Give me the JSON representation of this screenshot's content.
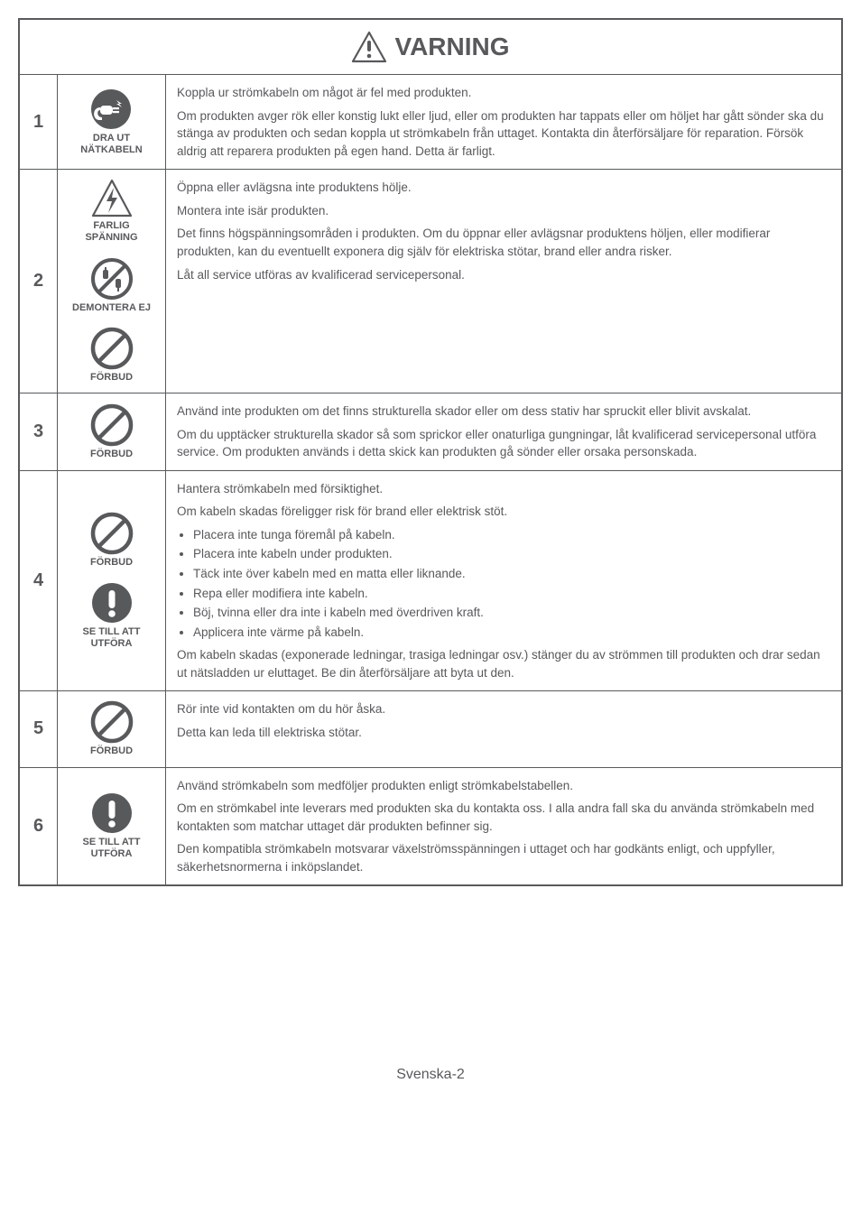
{
  "header": {
    "title": "VARNING"
  },
  "footer": "Svenska-2",
  "rows": [
    {
      "num": "1",
      "icons": [
        {
          "type": "unplug",
          "label": "DRA UT\nNÄTKABELN"
        }
      ],
      "paras": [
        "Koppla ur strömkabeln om något är fel med produkten.",
        "Om produkten avger rök eller konstig lukt eller ljud, eller om produkten har tappats eller om höljet har gått sönder ska du stänga av produkten och sedan koppla ut strömkabeln från uttaget. Kontakta din återförsäljare för reparation. Försök aldrig att reparera produkten på egen hand. Detta är farligt."
      ]
    },
    {
      "num": "2",
      "icons": [
        {
          "type": "voltage",
          "label": "FARLIG\nSPÄNNING"
        },
        {
          "type": "disassemble",
          "label": "DEMONTERA EJ"
        },
        {
          "type": "prohibit",
          "label": "FÖRBUD"
        }
      ],
      "paras": [
        "Öppna eller avlägsna inte produktens hölje.",
        "Montera inte isär produkten.",
        "Det finns högspänningsområden i produkten. Om du öppnar eller avlägsnar produktens höljen, eller modifierar produkten, kan du eventuellt exponera dig själv för elektriska stötar, brand eller andra risker.",
        "Låt all service utföras av kvalificerad servicepersonal."
      ]
    },
    {
      "num": "3",
      "icons": [
        {
          "type": "prohibit",
          "label": "FÖRBUD"
        }
      ],
      "paras": [
        "Använd inte produkten om det finns strukturella skador eller om dess stativ har spruckit eller blivit avskalat.",
        "Om du upptäcker strukturella skador så som sprickor eller onaturliga gungningar, låt kvalificerad servicepersonal utföra service. Om produkten används i detta skick kan produkten gå sönder eller orsaka personskada."
      ]
    },
    {
      "num": "4",
      "icons": [
        {
          "type": "prohibit",
          "label": "FÖRBUD"
        },
        {
          "type": "mandatory",
          "label": "SE TILL ATT\nUTFÖRA"
        }
      ],
      "paras": [
        "Hantera strömkabeln med försiktighet.",
        "Om kabeln skadas föreligger risk för brand eller elektrisk stöt."
      ],
      "bullets": [
        "Placera inte tunga föremål på kabeln.",
        "Placera inte kabeln under produkten.",
        "Täck inte över kabeln med en matta eller liknande.",
        "Repa eller modifiera inte kabeln.",
        "Böj, tvinna eller dra inte i kabeln med överdriven kraft.",
        "Applicera inte värme på kabeln."
      ],
      "after": [
        "Om kabeln skadas (exponerade ledningar, trasiga ledningar osv.) stänger du av strömmen till produkten och drar sedan ut nätsladden ur eluttaget. Be din återförsäljare att byta ut den."
      ]
    },
    {
      "num": "5",
      "icons": [
        {
          "type": "prohibit",
          "label": "FÖRBUD"
        }
      ],
      "paras": [
        "Rör inte vid kontakten om du hör åska.",
        "Detta kan leda till elektriska stötar."
      ]
    },
    {
      "num": "6",
      "icons": [
        {
          "type": "mandatory",
          "label": "SE TILL ATT\nUTFÖRA"
        }
      ],
      "paras": [
        "Använd strömkabeln som medföljer produkten enligt strömkabelstabellen.",
        "Om en strömkabel inte leverars med produkten ska du kontakta oss. I alla andra fall ska du använda strömkabeln med kontakten som matchar uttaget där produkten befinner sig.",
        "Den kompatibla strömkabeln motsvarar växelströmsspänningen i uttaget och har godkänts enligt, och uppfyller, säkerhetsnormerna i inköpslandet."
      ]
    }
  ],
  "colors": {
    "stroke": "#58595b",
    "fill": "#58595b",
    "bg": "#ffffff"
  }
}
